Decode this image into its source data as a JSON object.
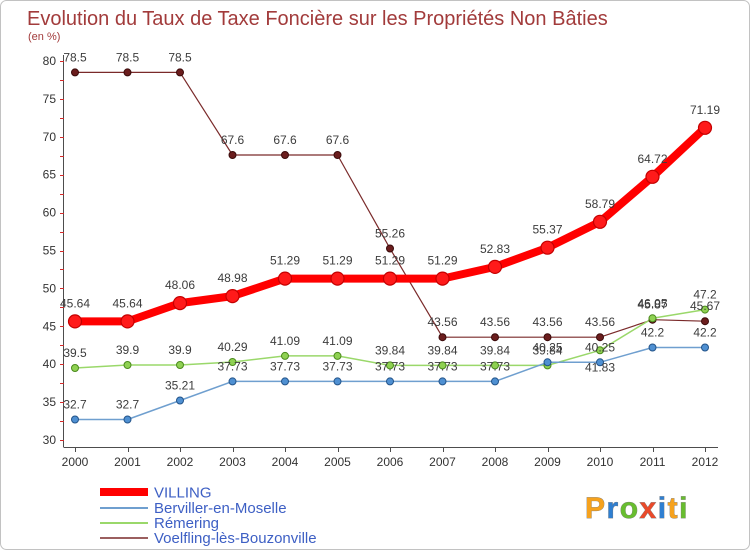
{
  "chart_data": {
    "type": "line",
    "title": "Evolution du Taux de Taxe Foncière sur les Propriétés Non Bâties",
    "subtitle": "(en %)",
    "x": [
      "2000",
      "2001",
      "2002",
      "2003",
      "2004",
      "2005",
      "2006",
      "2007",
      "2008",
      "2009",
      "2010",
      "2011",
      "2012"
    ],
    "ylim": [
      30,
      80
    ],
    "yticks": [
      30,
      35,
      40,
      45,
      50,
      55,
      60,
      65,
      70,
      75,
      80
    ],
    "grid": false,
    "legend": "bottom-left",
    "series": [
      {
        "name": "VILLING",
        "color": "#ff0000",
        "values": [
          45.64,
          45.64,
          48.06,
          48.98,
          51.29,
          51.29,
          51.29,
          51.29,
          52.83,
          55.37,
          58.79,
          64.72,
          71.19
        ]
      },
      {
        "name": "Berviller-en-Moselle",
        "color": "#6f9fcf",
        "values": [
          32.7,
          32.7,
          35.21,
          37.73,
          37.73,
          37.73,
          37.73,
          37.73,
          37.73,
          40.25,
          40.25,
          42.2,
          42.2
        ]
      },
      {
        "name": "Rémering",
        "color": "#9ad86a",
        "values": [
          39.5,
          39.9,
          39.9,
          40.29,
          41.09,
          41.09,
          39.84,
          39.84,
          39.84,
          39.84,
          41.83,
          46.05,
          47.2
        ]
      },
      {
        "name": "Voelfling-lès-Bouzonville",
        "color": "#7a2a2a",
        "values": [
          78.5,
          78.5,
          78.5,
          67.6,
          67.6,
          67.6,
          55.26,
          43.56,
          43.56,
          43.56,
          43.56,
          45.87,
          45.67
        ]
      }
    ]
  },
  "logo": {
    "text": "Proxiti"
  }
}
